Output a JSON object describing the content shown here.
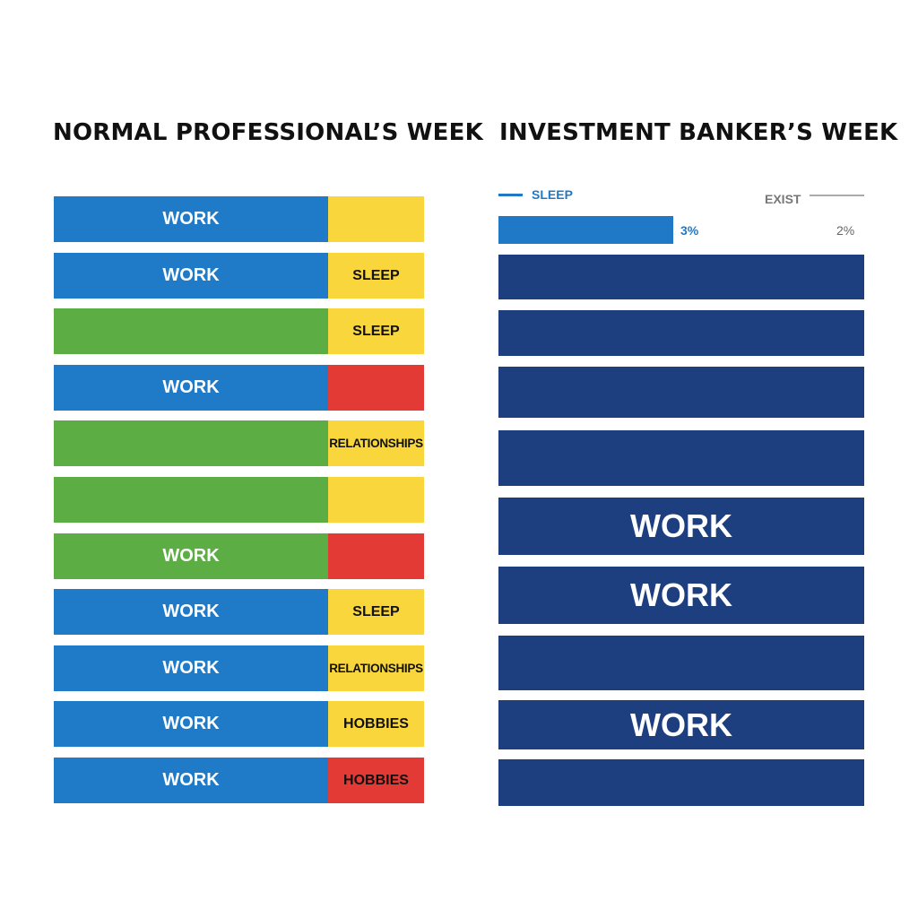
{
  "chart_data": [
    {
      "type": "bar",
      "title": "NORMAL PROFESSIONAL’S WEEK",
      "colors": {
        "work": "#1f7bc8",
        "other": "#5cae44",
        "yellow": "#f9d73c",
        "red": "#e33a36"
      },
      "rows": [
        {
          "main_label": "WORK",
          "main_color": "#1f7bc8",
          "side_label": "",
          "side_color": "#f9d73c"
        },
        {
          "main_label": "WORK",
          "main_color": "#1f7bc8",
          "side_label": "SLEEP",
          "side_color": "#f9d73c"
        },
        {
          "main_label": "",
          "main_color": "#5cae44",
          "side_label": "SLEEP",
          "side_color": "#f9d73c"
        },
        {
          "main_label": "WORK",
          "main_color": "#1f7bc8",
          "side_label": "",
          "side_color": "#e33a36"
        },
        {
          "main_label": "",
          "main_color": "#5cae44",
          "side_label": "RELATIONSHIPS",
          "side_color": "#f9d73c"
        },
        {
          "main_label": "",
          "main_color": "#5cae44",
          "side_label": "",
          "side_color": "#f9d73c"
        },
        {
          "main_label": "WORK",
          "main_color": "#5cae44",
          "side_label": "",
          "side_color": "#e33a36"
        },
        {
          "main_label": "WORK",
          "main_color": "#1f7bc8",
          "side_label": "SLEEP",
          "side_color": "#f9d73c"
        },
        {
          "main_label": "WORK",
          "main_color": "#1f7bc8",
          "side_label": "RELATIONSHIPS",
          "side_color": "#f9d73c"
        },
        {
          "main_label": "WORK",
          "main_color": "#1f7bc8",
          "side_label": "HOBBIES",
          "side_color": "#f9d73c"
        },
        {
          "main_label": "WORK",
          "main_color": "#1f7bc8",
          "side_label": "HOBBIES",
          "side_color": "#e33a36"
        }
      ]
    },
    {
      "type": "bar",
      "title": "INVESTMENT BANKER’S WEEK",
      "colors": {
        "work": "#1d3f7f",
        "sleep": "#1f79c7",
        "exist": "#999999"
      },
      "legend": [
        {
          "name": "SLEEP",
          "color": "#1f79c7"
        },
        {
          "name": "EXIST",
          "color": "#999999"
        }
      ],
      "sleep_bar": {
        "value": 3,
        "label": "3%"
      },
      "exist_bar": {
        "value": 2,
        "label": "2%"
      },
      "work_rows": [
        "",
        "",
        "",
        "",
        "WORK",
        "WORK",
        "",
        "WORK",
        ""
      ]
    }
  ]
}
